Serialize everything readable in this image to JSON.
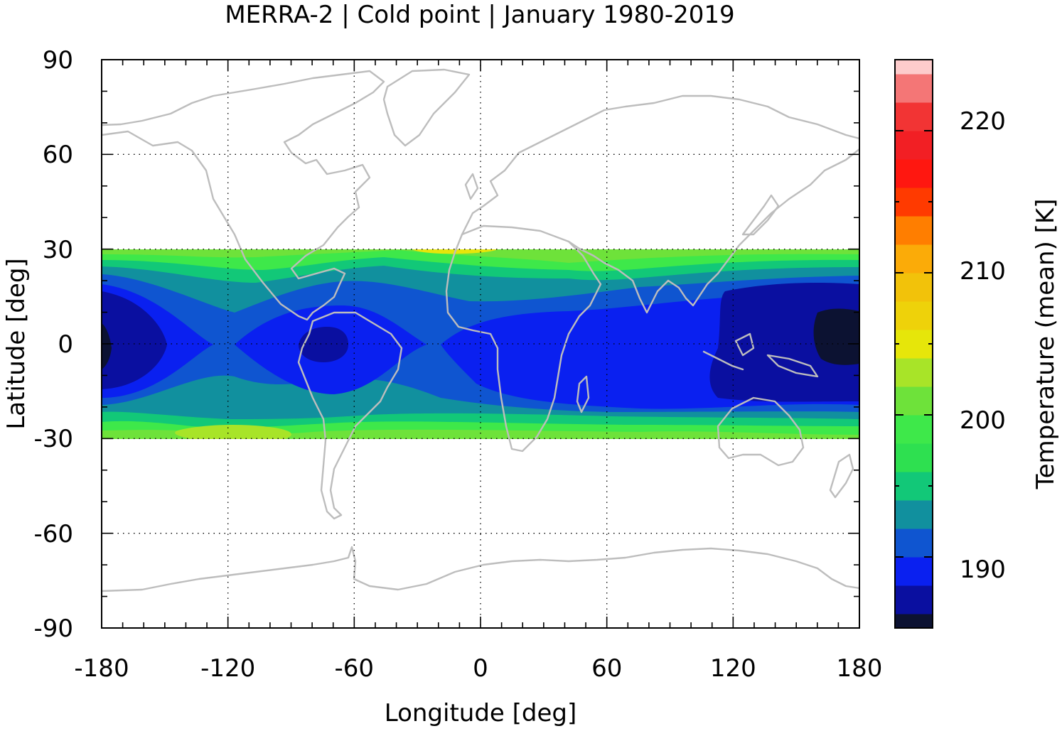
{
  "chart_data": {
    "type": "heatmap",
    "title": "MERRA-2 | Cold point | January 1980-2019",
    "xlabel": "Longitude [deg]",
    "ylabel": "Latitude [deg]",
    "colorbar_label": "Temperature (mean) [K]",
    "xlim": [
      -180,
      180
    ],
    "ylim": [
      -90,
      90
    ],
    "x_ticks": [
      "-180",
      "-120",
      "-60",
      "0",
      "60",
      "120",
      "180"
    ],
    "y_ticks": [
      "90",
      "60",
      "30",
      "0",
      "-30",
      "-60",
      "-90"
    ],
    "data_extent_lat": [
      -30,
      30
    ],
    "colorbar": {
      "range": [
        185,
        225
      ],
      "ticks": [
        "190",
        "200",
        "210",
        "220"
      ],
      "levels": [
        {
          "min": 185,
          "max": 186,
          "color": "#0c1232"
        },
        {
          "min": 186,
          "max": 188,
          "color": "#0a0fa0"
        },
        {
          "min": 188,
          "max": 190,
          "color": "#0a20f0"
        },
        {
          "min": 190,
          "max": 192,
          "color": "#0f55d0"
        },
        {
          "min": 192,
          "max": 194,
          "color": "#11909e"
        },
        {
          "min": 194,
          "max": 196,
          "color": "#12c878"
        },
        {
          "min": 196,
          "max": 198,
          "color": "#2ee050"
        },
        {
          "min": 198,
          "max": 200,
          "color": "#3ee84a"
        },
        {
          "min": 200,
          "max": 202,
          "color": "#6ee23a"
        },
        {
          "min": 202,
          "max": 204,
          "color": "#a8e428"
        },
        {
          "min": 204,
          "max": 206,
          "color": "#e6e60a"
        },
        {
          "min": 206,
          "max": 208,
          "color": "#eed20a"
        },
        {
          "min": 208,
          "max": 210,
          "color": "#f2c20a"
        },
        {
          "min": 210,
          "max": 212,
          "color": "#fbab08"
        },
        {
          "min": 212,
          "max": 214,
          "color": "#ff7e00"
        },
        {
          "min": 214,
          "max": 216,
          "color": "#ff3a00"
        },
        {
          "min": 216,
          "max": 218,
          "color": "#ff1710"
        },
        {
          "min": 218,
          "max": 220,
          "color": "#f21f24"
        },
        {
          "min": 220,
          "max": 222,
          "color": "#f23434"
        },
        {
          "min": 222,
          "max": 224,
          "color": "#f47676"
        },
        {
          "min": 224,
          "max": 225,
          "color": "#fdcccc"
        }
      ]
    },
    "field_description": [
      {
        "lon": -180,
        "lat": 0,
        "value": 186
      },
      {
        "lon": -140,
        "lat": 0,
        "value": 189
      },
      {
        "lon": -72,
        "lat": 0,
        "value": 187
      },
      {
        "lon": 20,
        "lat": 0,
        "value": 189
      },
      {
        "lon": 140,
        "lat": 5,
        "value": 187
      },
      {
        "lon": 172,
        "lat": 0,
        "value": 185.5
      },
      {
        "lon": -15,
        "lat": 30,
        "value": 205
      },
      {
        "lon": -120,
        "lat": -30,
        "value": 203
      },
      {
        "lon": 100,
        "lat": 30,
        "value": 197
      }
    ]
  }
}
